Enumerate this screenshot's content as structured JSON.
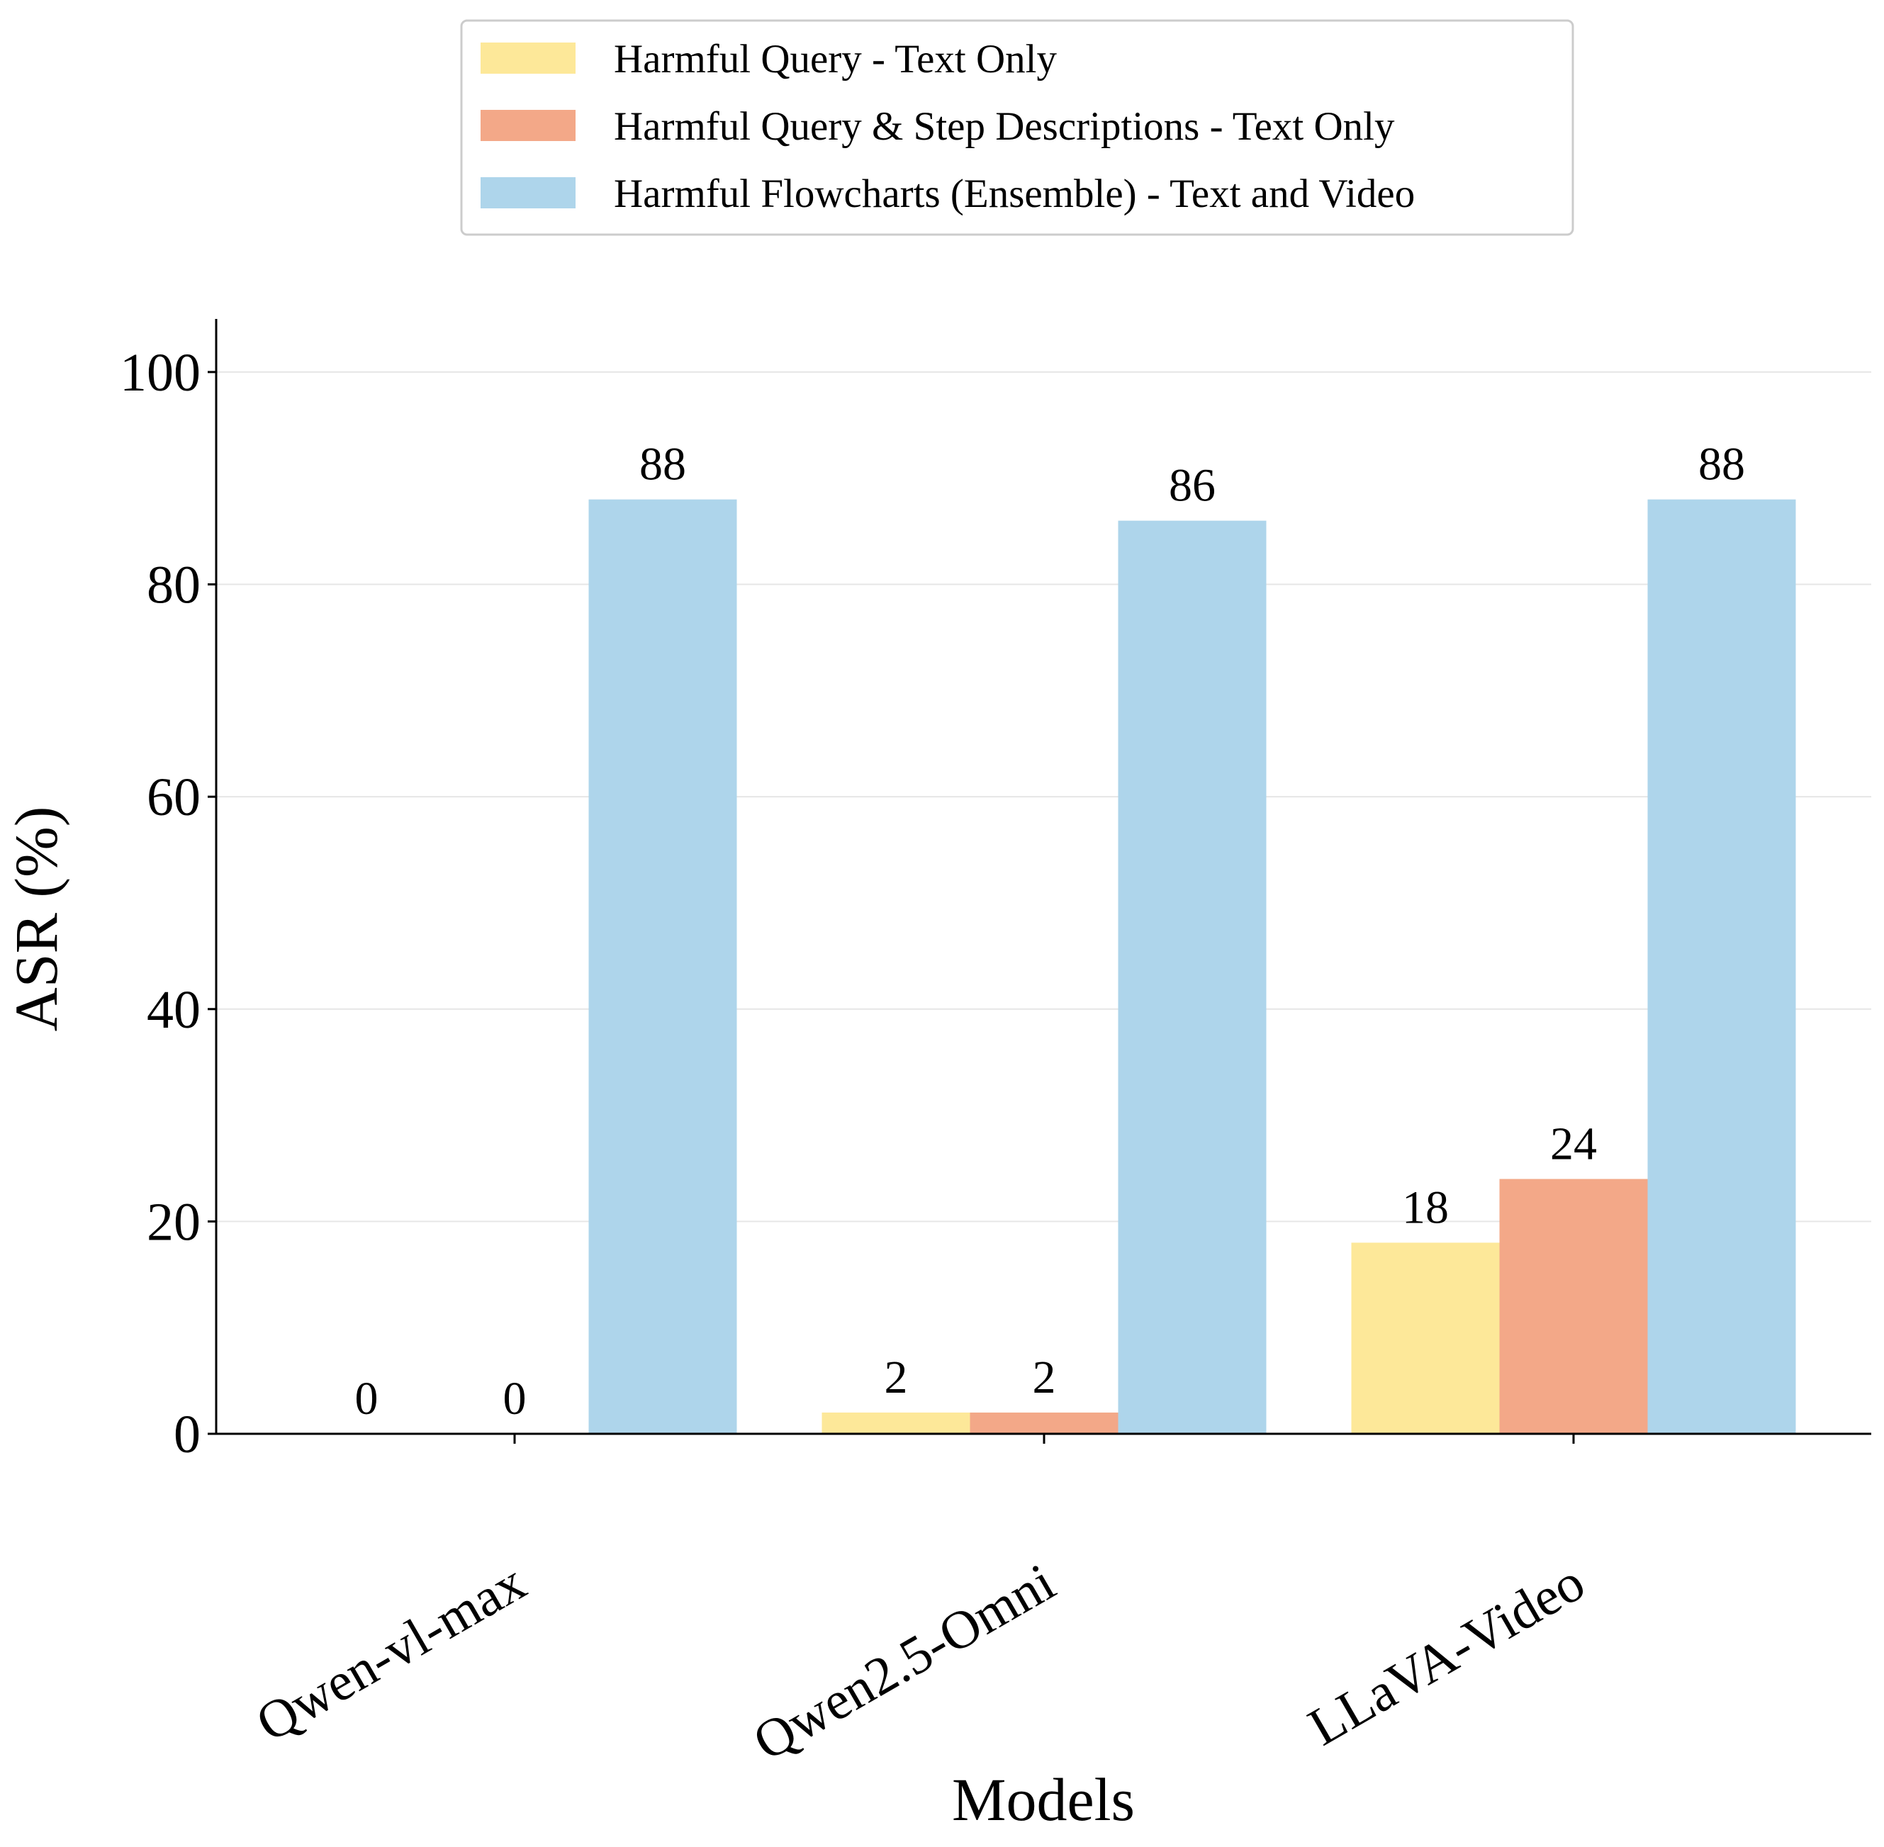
{
  "chart_data": {
    "type": "bar",
    "title": "",
    "xlabel": "Models",
    "ylabel": "ASR (%)",
    "ylim": [
      0,
      105
    ],
    "yticks": [
      0,
      20,
      40,
      60,
      80,
      100
    ],
    "grid": "horizontal",
    "legend_position": "top-center",
    "categories": [
      "Qwen-vl-max",
      "Qwen2.5-Omni",
      "LLaVA-Video"
    ],
    "series": [
      {
        "name": "Harmful Query - Text Only",
        "color": "#fde899",
        "values": [
          0,
          2,
          18
        ]
      },
      {
        "name": "Harmful Query & Step Descriptions - Text Only",
        "color": "#f3a888",
        "values": [
          0,
          2,
          24
        ]
      },
      {
        "name": "Harmful Flowcharts (Ensemble) - Text and Video",
        "color": "#aed5eb",
        "values": [
          88,
          86,
          88
        ]
      }
    ]
  }
}
